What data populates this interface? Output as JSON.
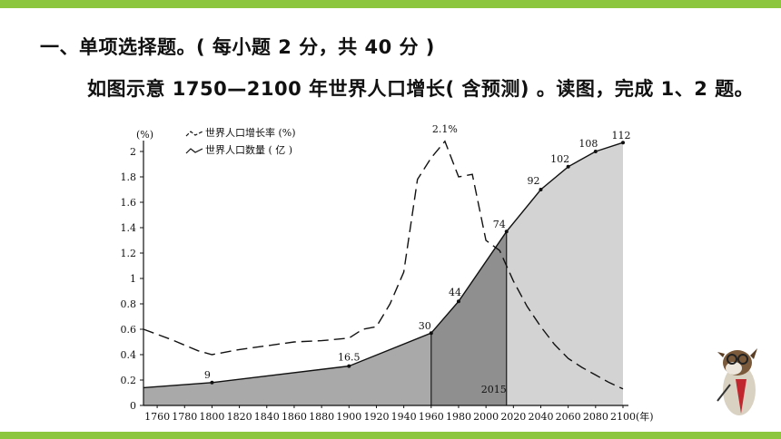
{
  "question": {
    "heading": "一、单项选择题。( 每小题 2 分，共 40 分 )",
    "intro": "如图示意 1750—2100 年世界人口增长( 含预测) 。读图，完成 1、2 题。"
  },
  "chart_data": {
    "type": "line",
    "y_unit_label": "(%)",
    "x_unit_label": "(年)",
    "ylim": [
      0,
      2.1
    ],
    "xlim": [
      1750,
      2100
    ],
    "y_ticks": [
      "0",
      "0.2",
      "0.4",
      "0.6",
      "0.8",
      "1",
      "1.2",
      "1.4",
      "1.6",
      "1.8",
      "2"
    ],
    "x_ticks": [
      "1760",
      "1780",
      "1800",
      "1820",
      "1840",
      "1860",
      "1880",
      "1900",
      "1920",
      "1940",
      "1960",
      "1980",
      "2000",
      "2020",
      "2040",
      "2060",
      "2080",
      "2100"
    ],
    "legend": [
      {
        "label": "世界人口增长率 (%)",
        "style": "dashed"
      },
      {
        "label": "世界人口数量 ( 亿 )",
        "style": "solid"
      }
    ],
    "series": [
      {
        "name": "世界人口增长率 (%)",
        "style": "dashed",
        "x": [
          1750,
          1770,
          1790,
          1800,
          1820,
          1840,
          1860,
          1880,
          1900,
          1910,
          1920,
          1930,
          1940,
          1950,
          1960,
          1970,
          1980,
          1990,
          2000,
          2010,
          2020,
          2030,
          2040,
          2050,
          2060,
          2070,
          2080,
          2090,
          2100
        ],
        "y": [
          0.6,
          0.52,
          0.43,
          0.4,
          0.44,
          0.47,
          0.5,
          0.51,
          0.53,
          0.6,
          0.62,
          0.8,
          1.05,
          1.78,
          1.95,
          2.08,
          1.8,
          1.82,
          1.3,
          1.22,
          0.98,
          0.78,
          0.62,
          0.48,
          0.37,
          0.3,
          0.24,
          0.18,
          0.13
        ]
      },
      {
        "name": "世界人口数量 ( 亿 )",
        "style": "solid",
        "x": [
          1750,
          1800,
          1900,
          1960,
          1980,
          2015,
          2040,
          2060,
          2080,
          2100
        ],
        "y": [
          0.14,
          0.18,
          0.31,
          0.57,
          0.82,
          1.37,
          1.7,
          1.88,
          2.0,
          2.07
        ]
      }
    ],
    "point_labels": [
      {
        "x": 1800,
        "text": "9"
      },
      {
        "x": 1900,
        "text": "16.5"
      },
      {
        "x": 1960,
        "text": "30"
      },
      {
        "x": 1980,
        "text": "44"
      },
      {
        "x": 2015,
        "text": "74"
      },
      {
        "x": 2040,
        "text": "92"
      },
      {
        "x": 2060,
        "text": "102"
      },
      {
        "x": 2080,
        "text": "108"
      },
      {
        "x": 2100,
        "text": "112"
      }
    ],
    "annotations": [
      {
        "x": 1970,
        "y": 2.08,
        "text": "2.1%"
      },
      {
        "x": 2015,
        "y": 0,
        "text": "2015"
      }
    ],
    "vertical_markers": [
      1960,
      2015
    ],
    "shaded_regions": [
      {
        "from": 1750,
        "to": 1960,
        "color": "#a9a9a9"
      },
      {
        "from": 1960,
        "to": 2015,
        "color": "#8f8f8f"
      },
      {
        "from": 2015,
        "to": 2100,
        "color": "#d3d3d3"
      }
    ]
  }
}
